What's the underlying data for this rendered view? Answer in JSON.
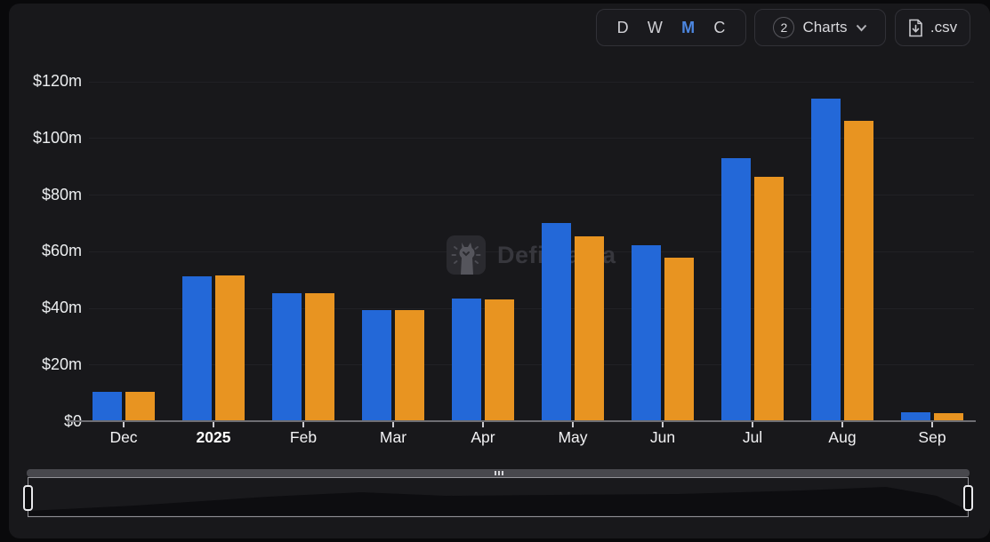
{
  "toolbar": {
    "intervals": [
      {
        "label": "D",
        "active": false
      },
      {
        "label": "W",
        "active": false
      },
      {
        "label": "M",
        "active": true
      },
      {
        "label": "C",
        "active": false
      }
    ],
    "charts_button": {
      "count": "2",
      "label": "Charts"
    },
    "csv_button": {
      "label": ".csv"
    }
  },
  "watermark": {
    "text": "DefiLlama"
  },
  "chart_data": {
    "type": "bar",
    "title": "",
    "xlabel": "",
    "ylabel": "",
    "unit": "USD millions",
    "categories": [
      "Dec",
      "2025",
      "Feb",
      "Mar",
      "Apr",
      "May",
      "Jun",
      "Jul",
      "Aug",
      "Sep"
    ],
    "emphasis_category": "2025",
    "series": [
      {
        "name": "blue",
        "color": "#2368d8",
        "values": [
          10.4,
          51.2,
          45.2,
          39.3,
          43.3,
          70.1,
          62.1,
          92.9,
          114.0,
          3.0
        ]
      },
      {
        "name": "orange",
        "color": "#e89421",
        "values": [
          10.4,
          51.5,
          45.2,
          39.3,
          43.0,
          65.4,
          57.8,
          86.3,
          105.9,
          2.7
        ]
      }
    ],
    "y_ticks": [
      "$120m",
      "$100m",
      "$80m",
      "$60m",
      "$40m",
      "$20m",
      "$0"
    ],
    "ylim": [
      0,
      120
    ],
    "y_step": 20,
    "grid": true,
    "legend_position": "none"
  }
}
